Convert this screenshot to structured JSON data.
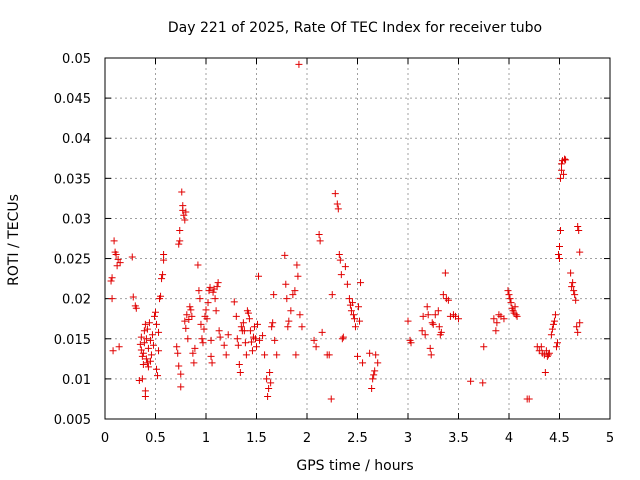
{
  "colors": {
    "series": "#e00000",
    "background": "#ffffff",
    "axis": "#000000"
  },
  "chart_data": {
    "type": "scatter",
    "title": "Day 221 of 2025, Rate Of TEC Index for receiver tubo",
    "xlabel": "GPS time / hours",
    "ylabel": "ROTI / TECUs",
    "xlim": [
      0,
      5
    ],
    "ylim": [
      0.005,
      0.05
    ],
    "xticks": [
      0,
      0.5,
      1,
      1.5,
      2,
      2.5,
      3,
      3.5,
      4,
      4.5,
      5
    ],
    "yticks": [
      0.005,
      0.01,
      0.015,
      0.02,
      0.025,
      0.03,
      0.035,
      0.04,
      0.045,
      0.05
    ],
    "xtick_labels": [
      "0",
      "0.5",
      "1",
      "1.5",
      "2",
      "2.5",
      "3",
      "3.5",
      "4",
      "4.5",
      "5"
    ],
    "ytick_labels": [
      "0.005",
      "0.01",
      "0.015",
      "0.02",
      "0.025",
      "0.03",
      "0.035",
      "0.04",
      "0.045",
      "0.05"
    ],
    "grid": true,
    "marker": "+",
    "series": [
      {
        "name": "ROTI",
        "points": [
          [
            0.06,
            0.0222
          ],
          [
            0.07,
            0.0226
          ],
          [
            0.07,
            0.02
          ],
          [
            0.08,
            0.0135
          ],
          [
            0.09,
            0.0272
          ],
          [
            0.1,
            0.0258
          ],
          [
            0.11,
            0.0255
          ],
          [
            0.12,
            0.0241
          ],
          [
            0.13,
            0.0249
          ],
          [
            0.14,
            0.014
          ],
          [
            0.15,
            0.0245
          ],
          [
            0.27,
            0.0252
          ],
          [
            0.28,
            0.0202
          ],
          [
            0.3,
            0.0191
          ],
          [
            0.31,
            0.0188
          ],
          [
            0.34,
            0.0098
          ],
          [
            0.35,
            0.0143
          ],
          [
            0.36,
            0.0136
          ],
          [
            0.36,
            0.0152
          ],
          [
            0.37,
            0.0128
          ],
          [
            0.37,
            0.01
          ],
          [
            0.38,
            0.0118
          ],
          [
            0.38,
            0.0132
          ],
          [
            0.39,
            0.0145
          ],
          [
            0.39,
            0.016
          ],
          [
            0.4,
            0.0168
          ],
          [
            0.4,
            0.0085
          ],
          [
            0.4,
            0.0078
          ],
          [
            0.41,
            0.015
          ],
          [
            0.41,
            0.0125
          ],
          [
            0.42,
            0.012
          ],
          [
            0.42,
            0.0162
          ],
          [
            0.43,
            0.0138
          ],
          [
            0.43,
            0.0115
          ],
          [
            0.44,
            0.017
          ],
          [
            0.45,
            0.0148
          ],
          [
            0.45,
            0.0122
          ],
          [
            0.46,
            0.013
          ],
          [
            0.47,
            0.0155
          ],
          [
            0.48,
            0.0142
          ],
          [
            0.49,
            0.0178
          ],
          [
            0.5,
            0.0183
          ],
          [
            0.51,
            0.0168
          ],
          [
            0.51,
            0.0112
          ],
          [
            0.52,
            0.0104
          ],
          [
            0.53,
            0.0158
          ],
          [
            0.53,
            0.0135
          ],
          [
            0.54,
            0.02
          ],
          [
            0.55,
            0.0203
          ],
          [
            0.56,
            0.0225
          ],
          [
            0.57,
            0.023
          ],
          [
            0.58,
            0.0248
          ],
          [
            0.58,
            0.0255
          ],
          [
            0.71,
            0.014
          ],
          [
            0.72,
            0.0132
          ],
          [
            0.73,
            0.0116
          ],
          [
            0.73,
            0.0268
          ],
          [
            0.74,
            0.0272
          ],
          [
            0.74,
            0.0285
          ],
          [
            0.75,
            0.0106
          ],
          [
            0.75,
            0.009
          ],
          [
            0.76,
            0.0333
          ],
          [
            0.77,
            0.0316
          ],
          [
            0.77,
            0.031
          ],
          [
            0.78,
            0.0304
          ],
          [
            0.79,
            0.0298
          ],
          [
            0.79,
            0.0172
          ],
          [
            0.8,
            0.0308
          ],
          [
            0.8,
            0.0163
          ],
          [
            0.81,
            0.018
          ],
          [
            0.82,
            0.015
          ],
          [
            0.83,
            0.0174
          ],
          [
            0.84,
            0.019
          ],
          [
            0.85,
            0.0186
          ],
          [
            0.86,
            0.0178
          ],
          [
            0.87,
            0.0132
          ],
          [
            0.88,
            0.012
          ],
          [
            0.89,
            0.0138
          ],
          [
            0.92,
            0.0242
          ],
          [
            0.93,
            0.021
          ],
          [
            0.94,
            0.02
          ],
          [
            0.95,
            0.0168
          ],
          [
            0.96,
            0.015
          ],
          [
            0.97,
            0.0145
          ],
          [
            0.98,
            0.0162
          ],
          [
            0.99,
            0.0178
          ],
          [
            1.0,
            0.0186
          ],
          [
            1.01,
            0.0175
          ],
          [
            1.02,
            0.0195
          ],
          [
            1.03,
            0.021
          ],
          [
            1.04,
            0.0214
          ],
          [
            1.05,
            0.0128
          ],
          [
            1.05,
            0.0148
          ],
          [
            1.06,
            0.012
          ],
          [
            1.07,
            0.0208
          ],
          [
            1.08,
            0.0212
          ],
          [
            1.09,
            0.02
          ],
          [
            1.1,
            0.0185
          ],
          [
            1.11,
            0.0215
          ],
          [
            1.12,
            0.022
          ],
          [
            1.13,
            0.016
          ],
          [
            1.14,
            0.0152
          ],
          [
            1.18,
            0.0142
          ],
          [
            1.2,
            0.013
          ],
          [
            1.22,
            0.0155
          ],
          [
            1.28,
            0.0196
          ],
          [
            1.3,
            0.0178
          ],
          [
            1.31,
            0.015
          ],
          [
            1.32,
            0.0142
          ],
          [
            1.33,
            0.0118
          ],
          [
            1.34,
            0.0108
          ],
          [
            1.35,
            0.0165
          ],
          [
            1.36,
            0.016
          ],
          [
            1.37,
            0.017
          ],
          [
            1.38,
            0.016
          ],
          [
            1.39,
            0.0145
          ],
          [
            1.4,
            0.013
          ],
          [
            1.41,
            0.0185
          ],
          [
            1.42,
            0.0182
          ],
          [
            1.43,
            0.0175
          ],
          [
            1.44,
            0.016
          ],
          [
            1.45,
            0.0146
          ],
          [
            1.46,
            0.0135
          ],
          [
            1.47,
            0.0152
          ],
          [
            1.48,
            0.0165
          ],
          [
            1.49,
            0.015
          ],
          [
            1.5,
            0.014
          ],
          [
            1.51,
            0.0168
          ],
          [
            1.52,
            0.0228
          ],
          [
            1.53,
            0.0148
          ],
          [
            1.56,
            0.0154
          ],
          [
            1.58,
            0.013
          ],
          [
            1.6,
            0.01
          ],
          [
            1.61,
            0.0078
          ],
          [
            1.62,
            0.0088
          ],
          [
            1.63,
            0.0108
          ],
          [
            1.64,
            0.0095
          ],
          [
            1.65,
            0.0165
          ],
          [
            1.66,
            0.017
          ],
          [
            1.67,
            0.0205
          ],
          [
            1.68,
            0.0148
          ],
          [
            1.7,
            0.013
          ],
          [
            1.78,
            0.0254
          ],
          [
            1.79,
            0.0218
          ],
          [
            1.8,
            0.02
          ],
          [
            1.81,
            0.0165
          ],
          [
            1.82,
            0.0172
          ],
          [
            1.84,
            0.0185
          ],
          [
            1.86,
            0.0205
          ],
          [
            1.88,
            0.021
          ],
          [
            1.89,
            0.013
          ],
          [
            1.9,
            0.0242
          ],
          [
            1.91,
            0.0228
          ],
          [
            1.92,
            0.0492
          ],
          [
            1.93,
            0.018
          ],
          [
            1.95,
            0.0165
          ],
          [
            2.07,
            0.0148
          ],
          [
            2.09,
            0.014
          ],
          [
            2.12,
            0.028
          ],
          [
            2.13,
            0.0272
          ],
          [
            2.15,
            0.0158
          ],
          [
            2.2,
            0.013
          ],
          [
            2.22,
            0.013
          ],
          [
            2.24,
            0.0075
          ],
          [
            2.25,
            0.0205
          ],
          [
            2.28,
            0.0331
          ],
          [
            2.3,
            0.0318
          ],
          [
            2.31,
            0.0312
          ],
          [
            2.32,
            0.0255
          ],
          [
            2.33,
            0.0248
          ],
          [
            2.34,
            0.023
          ],
          [
            2.35,
            0.015
          ],
          [
            2.36,
            0.0152
          ],
          [
            2.38,
            0.024
          ],
          [
            2.4,
            0.0218
          ],
          [
            2.42,
            0.02
          ],
          [
            2.43,
            0.0192
          ],
          [
            2.44,
            0.0185
          ],
          [
            2.45,
            0.0195
          ],
          [
            2.46,
            0.018
          ],
          [
            2.47,
            0.0175
          ],
          [
            2.48,
            0.0165
          ],
          [
            2.5,
            0.0128
          ],
          [
            2.51,
            0.019
          ],
          [
            2.52,
            0.0172
          ],
          [
            2.53,
            0.022
          ],
          [
            2.55,
            0.012
          ],
          [
            2.62,
            0.0132
          ],
          [
            2.64,
            0.0088
          ],
          [
            2.65,
            0.01
          ],
          [
            2.66,
            0.0105
          ],
          [
            2.67,
            0.011
          ],
          [
            2.68,
            0.013
          ],
          [
            2.7,
            0.012
          ],
          [
            3.0,
            0.0172
          ],
          [
            3.02,
            0.0148
          ],
          [
            3.03,
            0.0145
          ],
          [
            3.14,
            0.016
          ],
          [
            3.15,
            0.0178
          ],
          [
            3.17,
            0.0155
          ],
          [
            3.19,
            0.019
          ],
          [
            3.2,
            0.018
          ],
          [
            3.22,
            0.0138
          ],
          [
            3.23,
            0.013
          ],
          [
            3.24,
            0.017
          ],
          [
            3.25,
            0.0168
          ],
          [
            3.27,
            0.018
          ],
          [
            3.3,
            0.0185
          ],
          [
            3.31,
            0.0165
          ],
          [
            3.32,
            0.0155
          ],
          [
            3.33,
            0.0158
          ],
          [
            3.35,
            0.0205
          ],
          [
            3.37,
            0.0232
          ],
          [
            3.38,
            0.02
          ],
          [
            3.4,
            0.0198
          ],
          [
            3.42,
            0.0178
          ],
          [
            3.45,
            0.018
          ],
          [
            3.47,
            0.0178
          ],
          [
            3.5,
            0.0175
          ],
          [
            3.62,
            0.0097
          ],
          [
            3.74,
            0.0095
          ],
          [
            3.75,
            0.014
          ],
          [
            3.85,
            0.0175
          ],
          [
            3.87,
            0.016
          ],
          [
            3.88,
            0.017
          ],
          [
            3.9,
            0.018
          ],
          [
            3.92,
            0.0178
          ],
          [
            3.95,
            0.0175
          ],
          [
            3.99,
            0.021
          ],
          [
            4.0,
            0.0205
          ],
          [
            4.01,
            0.02
          ],
          [
            4.02,
            0.0195
          ],
          [
            4.03,
            0.0188
          ],
          [
            4.04,
            0.0185
          ],
          [
            4.05,
            0.0182
          ],
          [
            4.06,
            0.019
          ],
          [
            4.07,
            0.018
          ],
          [
            4.08,
            0.0178
          ],
          [
            4.18,
            0.0075
          ],
          [
            4.2,
            0.0075
          ],
          [
            4.28,
            0.014
          ],
          [
            4.3,
            0.0135
          ],
          [
            4.32,
            0.014
          ],
          [
            4.33,
            0.0132
          ],
          [
            4.35,
            0.013
          ],
          [
            4.36,
            0.0108
          ],
          [
            4.37,
            0.0135
          ],
          [
            4.38,
            0.0128
          ],
          [
            4.39,
            0.013
          ],
          [
            4.4,
            0.0132
          ],
          [
            4.42,
            0.0155
          ],
          [
            4.43,
            0.0162
          ],
          [
            4.44,
            0.0168
          ],
          [
            4.45,
            0.0172
          ],
          [
            4.46,
            0.018
          ],
          [
            4.47,
            0.014
          ],
          [
            4.48,
            0.0145
          ],
          [
            4.49,
            0.0255
          ],
          [
            4.5,
            0.025
          ],
          [
            4.5,
            0.0265
          ],
          [
            4.51,
            0.0285
          ],
          [
            4.51,
            0.035
          ],
          [
            4.52,
            0.036
          ],
          [
            4.52,
            0.0368
          ],
          [
            4.53,
            0.0372
          ],
          [
            4.54,
            0.0355
          ],
          [
            4.55,
            0.0374
          ],
          [
            4.56,
            0.0373
          ],
          [
            4.61,
            0.0232
          ],
          [
            4.62,
            0.0215
          ],
          [
            4.63,
            0.022
          ],
          [
            4.64,
            0.021
          ],
          [
            4.65,
            0.0205
          ],
          [
            4.66,
            0.0198
          ],
          [
            4.67,
            0.0165
          ],
          [
            4.68,
            0.0158
          ],
          [
            4.68,
            0.029
          ],
          [
            4.69,
            0.0285
          ],
          [
            4.7,
            0.0258
          ],
          [
            4.7,
            0.017
          ]
        ]
      }
    ]
  }
}
